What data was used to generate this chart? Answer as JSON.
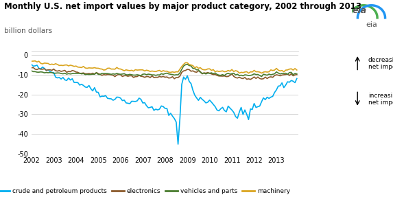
{
  "title": "Monthly U.S. net import values by major product category, 2002 through 2013",
  "subtitle": "billion dollars",
  "title_fontsize": 8.5,
  "subtitle_fontsize": 7.5,
  "line_width": 1.2,
  "colors": {
    "crude": "#00AEEF",
    "electronics": "#8B5A2B",
    "vehicles": "#4A7C2F",
    "machinery": "#DAA520"
  },
  "legend_labels": [
    "crude and petroleum products",
    "electronics",
    "vehicles and parts",
    "machinery"
  ],
  "ylim": [
    -50,
    2
  ],
  "yticks": [
    0,
    -10,
    -20,
    -30,
    -40,
    -50
  ],
  "xtick_years": [
    2002,
    2003,
    2004,
    2005,
    2006,
    2007,
    2008,
    2009,
    2010,
    2011,
    2012,
    2013
  ],
  "annotation_up": "decreasing\nnet imports",
  "annotation_down": "increasing\nnet imports",
  "background_color": "#FFFFFF",
  "grid_color": "#CCCCCC"
}
